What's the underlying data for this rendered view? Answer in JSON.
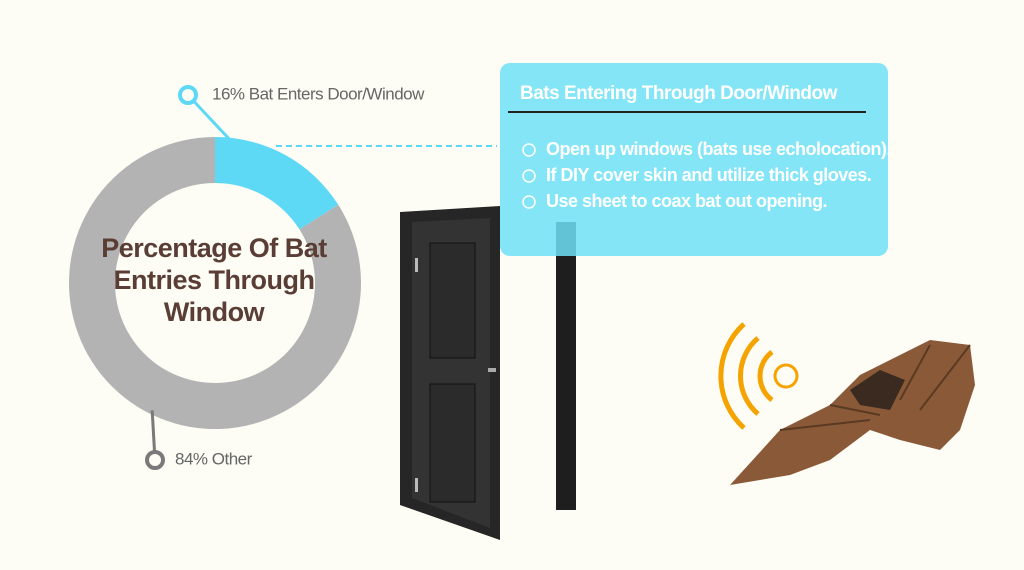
{
  "chart_data": {
    "type": "pie",
    "donut": true,
    "title": "Percentage Of Bat Entries Through Window",
    "values": [
      16,
      84
    ],
    "value_labels": [
      "16% Bat Enters Door/Window",
      "84% Other"
    ],
    "colors": [
      "#5dd9f6",
      "#b3b3b3"
    ]
  },
  "info_box": {
    "title": "Bats Entering Through Door/Window",
    "items": [
      "Open up windows (bats use echolocation).",
      "If DIY cover skin and utilize thick gloves.",
      "Use sheet to coax bat out opening."
    ]
  }
}
